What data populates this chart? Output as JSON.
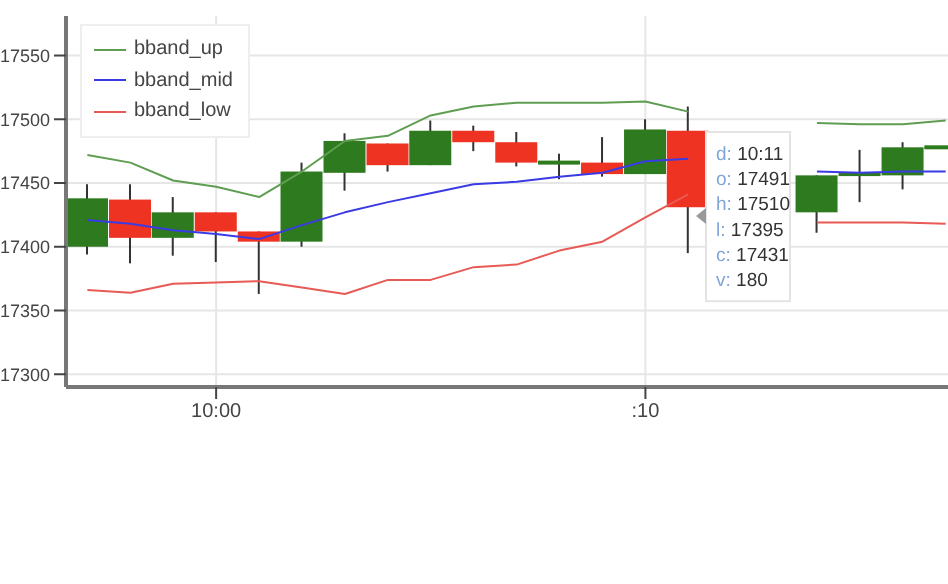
{
  "chart_data": {
    "type": "candlestick",
    "x": [
      9.95,
      9.9667,
      9.9833,
      10,
      10.0167,
      10.0333,
      10.05,
      10.0667,
      10.0833,
      10.1,
      10.1167,
      10.1333,
      10.15,
      10.1667,
      10.1833,
      10.2,
      10.2167,
      10.2333,
      10.25,
      10.2667,
      10.2833
    ],
    "ohlc": [
      [
        17400,
        17449,
        17394,
        17438
      ],
      [
        17437,
        17449,
        17387,
        17407
      ],
      [
        17407,
        17439,
        17393,
        17427
      ],
      [
        17427,
        17427,
        17388,
        17412
      ],
      [
        17412,
        17412,
        17363,
        17404
      ],
      [
        17404,
        17466,
        17400,
        17459
      ],
      [
        17458,
        17489,
        17444,
        17483
      ],
      [
        17481,
        17481,
        17459,
        17464
      ],
      [
        17464,
        17499,
        17464,
        17491
      ],
      [
        17491,
        17495,
        17475,
        17482
      ],
      [
        17482,
        17490,
        17463,
        17466
      ],
      [
        17466,
        17473,
        17453,
        17466
      ],
      [
        17466,
        17486,
        17455,
        17457
      ],
      [
        17457,
        17500,
        17457,
        17492
      ],
      [
        17491,
        17510,
        17395,
        17431
      ],
      null,
      null,
      [
        17427,
        17456,
        17411,
        17456
      ],
      [
        17457,
        17476,
        17435,
        17457
      ],
      [
        17456,
        17482,
        17445,
        17478
      ],
      [
        17478,
        17478,
        17478,
        17478
      ]
    ],
    "colors": [
      "#2e7b1f",
      "#ee3323",
      "#2e7b1f",
      "#ee3323",
      "#ee3323",
      "#2e7b1f",
      "#2e7b1f",
      "#ee3323",
      "#2e7b1f",
      "#ee3323",
      "#ee3323",
      "#2e7b1f",
      "#ee3323",
      "#2e7b1f",
      "#ee3323",
      null,
      null,
      "#2e7b1f",
      "#2e7b1f",
      "#2e7b1f",
      "#2e7b1f"
    ],
    "series": [
      {
        "name": "bband_up",
        "type": "line",
        "color": "#5f9e52",
        "values": [
          17472,
          17466,
          17452,
          17447,
          17439,
          17459,
          17483,
          17487,
          17503,
          17510,
          17513,
          17513,
          17513,
          17514,
          17506,
          null,
          null,
          17497,
          17496,
          17496,
          17499
        ]
      },
      {
        "name": "bband_mid",
        "type": "line",
        "color": "#3b3be6",
        "values": [
          17421,
          17418,
          17413,
          17410,
          17406,
          17417,
          17427,
          17435,
          17442,
          17449,
          17451,
          17455,
          17458,
          17467,
          17469,
          null,
          null,
          17459,
          17458,
          17459,
          17459
        ]
      },
      {
        "name": "bband_low",
        "type": "line",
        "color": "#e85a55",
        "values": [
          17366,
          17364,
          17371,
          17372,
          17373,
          17368,
          17363,
          17374,
          17374,
          17384,
          17386,
          17397,
          17404,
          17423,
          17441,
          null,
          null,
          17419,
          17419,
          17419,
          17418
        ]
      }
    ],
    "xlim": [
      9.9417,
      10.2842
    ],
    "xticks": [
      {
        "value": 10,
        "label": "10:00"
      },
      {
        "value": 10.1667,
        "label": ":10"
      }
    ],
    "ylim": [
      17290,
      17581
    ],
    "yticks": [
      17300,
      17350,
      17400,
      17450,
      17500,
      17550
    ],
    "grid": true,
    "legend": "top left",
    "annotations": [
      "d: 10:11",
      "o: 17491",
      "h: 17510",
      "l: 17395",
      "c: 17431",
      "v: 180"
    ]
  }
}
